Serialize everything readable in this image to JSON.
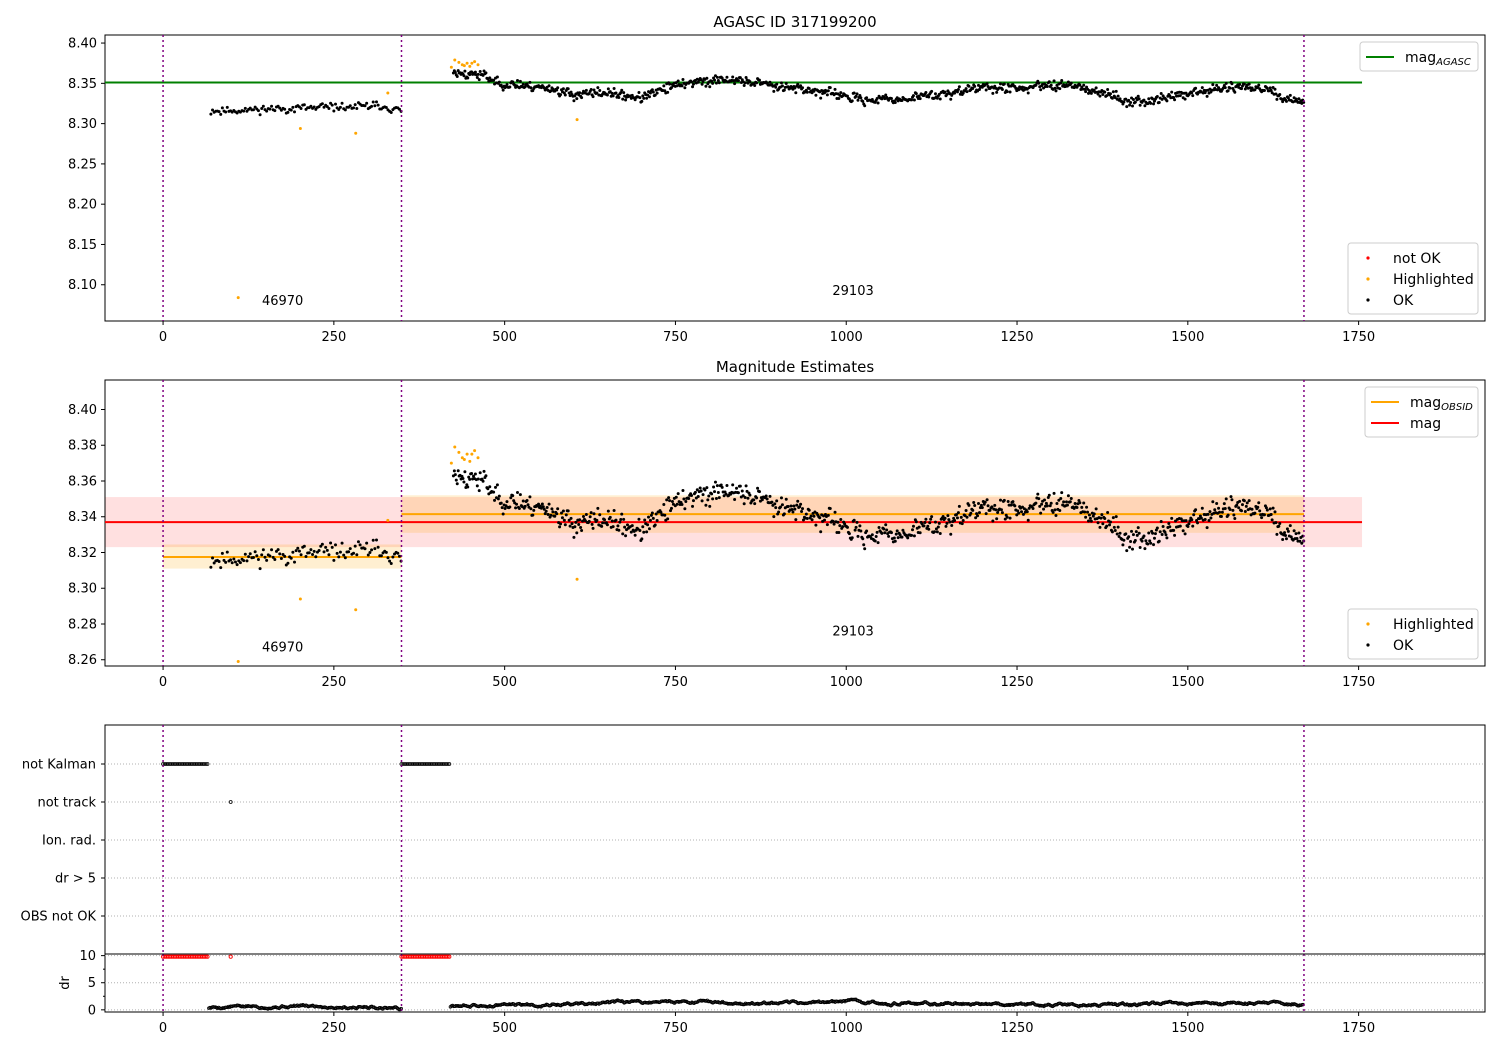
{
  "chart_data": [
    {
      "type": "scatter",
      "title": "AGASC ID 317199200",
      "xlim": [
        -85,
        1935
      ],
      "ylim": [
        8.055,
        8.41
      ],
      "xticks": [
        0,
        250,
        500,
        750,
        1000,
        1250,
        1500,
        1750
      ],
      "yticks": [
        8.1,
        8.15,
        8.2,
        8.25,
        8.3,
        8.35,
        8.4
      ],
      "ytick_labels": [
        "8.10",
        "8.15",
        "8.20",
        "8.25",
        "8.30",
        "8.35",
        "8.40"
      ],
      "vlines": [
        0,
        349,
        1670
      ],
      "obsid_labels": [
        {
          "text": "46970",
          "x": 175,
          "y": 8.075
        },
        {
          "text": "29103",
          "x": 1010,
          "y": 8.087
        }
      ],
      "hlines": [
        {
          "name": "mag",
          "sub": "AGASC",
          "y": 8.351,
          "x0": -85,
          "x1": 1755,
          "color": "#008000"
        }
      ],
      "bands": [],
      "series": [
        {
          "name": "not OK",
          "color": "#ff0000",
          "points": []
        },
        {
          "name": "Highlighted",
          "color": "#ffa500",
          "points": [
            [
              110,
              8.084
            ],
            [
              201,
              8.294
            ],
            [
              282,
              8.288
            ],
            [
              606,
              8.305
            ],
            [
              329,
              8.338
            ],
            [
              422,
              8.37
            ],
            [
              427,
              8.379
            ],
            [
              433,
              8.376
            ],
            [
              438,
              8.373
            ],
            [
              441,
              8.372
            ],
            [
              445,
              8.375
            ],
            [
              449,
              8.371
            ],
            [
              452,
              8.375
            ],
            [
              456,
              8.377
            ],
            [
              461,
              8.373
            ]
          ]
        },
        {
          "name": "OK",
          "color": "#000000",
          "segments": [
            {
              "start": 70,
              "end": 350,
              "step": 2.4,
              "base": [
                [
                  70,
                  8.316
                ],
                [
                  150,
                  8.318
                ],
                [
                  250,
                  8.32
                ],
                [
                  320,
                  8.322
                ],
                [
                  350,
                  8.316
                ]
              ],
              "noise": 0.0045,
              "seed": 11
            },
            {
              "start": 425,
              "end": 1670,
              "step": 1.4,
              "base": [
                [
                  425,
                  8.364
                ],
                [
                  470,
                  8.36
                ],
                [
                  490,
                  8.35
                ],
                [
                  560,
                  8.345
                ],
                [
                  600,
                  8.336
                ],
                [
                  650,
                  8.338
                ],
                [
                  700,
                  8.332
                ],
                [
                  760,
                  8.35
                ],
                [
                  830,
                  8.355
                ],
                [
                  900,
                  8.347
                ],
                [
                  960,
                  8.34
                ],
                [
                  1020,
                  8.33
                ],
                [
                  1080,
                  8.33
                ],
                [
                  1140,
                  8.337
                ],
                [
                  1200,
                  8.345
                ],
                [
                  1260,
                  8.344
                ],
                [
                  1320,
                  8.35
                ],
                [
                  1370,
                  8.34
                ],
                [
                  1420,
                  8.326
                ],
                [
                  1470,
                  8.333
                ],
                [
                  1520,
                  8.34
                ],
                [
                  1580,
                  8.347
                ],
                [
                  1620,
                  8.34
                ],
                [
                  1640,
                  8.33
                ],
                [
                  1670,
                  8.326
                ]
              ],
              "noise": 0.0055,
              "seed": 23
            }
          ]
        }
      ],
      "legends": [
        {
          "position": "upper right",
          "entries": [
            {
              "label": "mag",
              "sub": "AGASC",
              "kind": "line",
              "color": "#008000"
            }
          ]
        },
        {
          "position": "lower right",
          "entries": [
            {
              "label": "not OK",
              "kind": "dot",
              "color": "#ff0000"
            },
            {
              "label": "Highlighted",
              "kind": "dot",
              "color": "#ffa500"
            },
            {
              "label": "OK",
              "kind": "dot",
              "color": "#000000"
            }
          ]
        }
      ]
    },
    {
      "type": "scatter",
      "title": "Magnitude Estimates",
      "xlim": [
        -85,
        1935
      ],
      "ylim": [
        8.2565,
        8.4165
      ],
      "xticks": [
        0,
        250,
        500,
        750,
        1000,
        1250,
        1500,
        1750
      ],
      "yticks": [
        8.26,
        8.28,
        8.3,
        8.32,
        8.34,
        8.36,
        8.38,
        8.4
      ],
      "ytick_labels": [
        "8.26",
        "8.28",
        "8.30",
        "8.32",
        "8.34",
        "8.36",
        "8.38",
        "8.40"
      ],
      "vlines": [
        0,
        349,
        1670
      ],
      "obsid_labels": [
        {
          "text": "46970",
          "x": 175,
          "y": 8.2645
        },
        {
          "text": "29103",
          "x": 1010,
          "y": 8.2735
        }
      ],
      "hlines": [
        {
          "name": "mag",
          "sub": "OBSID",
          "y": 8.3175,
          "x0": 0,
          "x1": 349,
          "color": "#ffa500"
        },
        {
          "name": "mag",
          "sub": "OBSID",
          "y": 8.3415,
          "x0": 349,
          "x1": 1670,
          "color": "#ffa500"
        },
        {
          "name": "mag",
          "sub": "",
          "y": 8.337,
          "x0": -85,
          "x1": 1755,
          "color": "#ff0000"
        }
      ],
      "bands": [
        {
          "y0": 8.323,
          "y1": 8.351,
          "x0": -85,
          "x1": 1755,
          "color": "#ff0000",
          "opacity": 0.12
        },
        {
          "y0": 8.311,
          "y1": 8.3245,
          "x0": 0,
          "x1": 349,
          "color": "#ffa500",
          "opacity": 0.18
        },
        {
          "y0": 8.331,
          "y1": 8.352,
          "x0": 349,
          "x1": 1670,
          "color": "#ffa500",
          "opacity": 0.18
        }
      ],
      "series": [
        {
          "name": "Highlighted",
          "color": "#ffa500",
          "points": [
            [
              110,
              8.259
            ],
            [
              201,
              8.294
            ],
            [
              282,
              8.288
            ],
            [
              606,
              8.305
            ],
            [
              329,
              8.338
            ],
            [
              422,
              8.37
            ],
            [
              427,
              8.379
            ],
            [
              433,
              8.376
            ],
            [
              438,
              8.373
            ],
            [
              441,
              8.372
            ],
            [
              445,
              8.375
            ],
            [
              449,
              8.371
            ],
            [
              452,
              8.375
            ],
            [
              456,
              8.377
            ],
            [
              461,
              8.373
            ]
          ]
        },
        {
          "name": "OK",
          "color": "#000000",
          "segments": [
            {
              "start": 70,
              "end": 350,
              "step": 2.4,
              "base": [
                [
                  70,
                  8.316
                ],
                [
                  150,
                  8.318
                ],
                [
                  250,
                  8.32
                ],
                [
                  320,
                  8.322
                ],
                [
                  350,
                  8.316
                ]
              ],
              "noise": 0.0045,
              "seed": 11
            },
            {
              "start": 425,
              "end": 1670,
              "step": 1.4,
              "base": [
                [
                  425,
                  8.364
                ],
                [
                  470,
                  8.36
                ],
                [
                  490,
                  8.35
                ],
                [
                  560,
                  8.345
                ],
                [
                  600,
                  8.336
                ],
                [
                  650,
                  8.338
                ],
                [
                  700,
                  8.332
                ],
                [
                  760,
                  8.35
                ],
                [
                  830,
                  8.355
                ],
                [
                  900,
                  8.347
                ],
                [
                  960,
                  8.34
                ],
                [
                  1020,
                  8.33
                ],
                [
                  1080,
                  8.33
                ],
                [
                  1140,
                  8.337
                ],
                [
                  1200,
                  8.345
                ],
                [
                  1260,
                  8.344
                ],
                [
                  1320,
                  8.35
                ],
                [
                  1370,
                  8.34
                ],
                [
                  1420,
                  8.326
                ],
                [
                  1470,
                  8.333
                ],
                [
                  1520,
                  8.34
                ],
                [
                  1580,
                  8.347
                ],
                [
                  1620,
                  8.34
                ],
                [
                  1640,
                  8.33
                ],
                [
                  1670,
                  8.326
                ]
              ],
              "noise": 0.0055,
              "seed": 23
            }
          ]
        }
      ],
      "legends": [
        {
          "position": "upper right",
          "entries": [
            {
              "label": "mag",
              "sub": "OBSID",
              "kind": "line",
              "color": "#ffa500"
            },
            {
              "label": "mag",
              "sub": "",
              "kind": "line",
              "color": "#ff0000"
            }
          ]
        },
        {
          "position": "lower right",
          "entries": [
            {
              "label": "Highlighted",
              "kind": "dot",
              "color": "#ffa500"
            },
            {
              "label": "OK",
              "kind": "dot",
              "color": "#000000"
            }
          ]
        }
      ]
    },
    {
      "type": "scatter",
      "title": "",
      "xlim": [
        -85,
        1935
      ],
      "categories": [
        "not Kalman",
        "not track",
        "Ion. rad.",
        "dr > 5",
        "OBS not OK"
      ],
      "vlines": [
        0,
        349,
        1670
      ],
      "flags": [
        {
          "category": "not Kalman",
          "ranges": [
            [
              0,
              67
            ],
            [
              349,
              420
            ]
          ]
        },
        {
          "category": "not track",
          "points": [
            99
          ]
        },
        {
          "category": "Ion. rad.",
          "ranges": []
        },
        {
          "category": "dr > 5",
          "ranges": []
        },
        {
          "category": "OBS not OK",
          "ranges": []
        }
      ]
    },
    {
      "type": "scatter",
      "title": "",
      "ylabel": "dr",
      "xlim": [
        -85,
        1935
      ],
      "ylim": [
        -0.4,
        10.3
      ],
      "xticks": [
        0,
        250,
        500,
        750,
        1000,
        1250,
        1500,
        1750
      ],
      "yticks": [
        0,
        5,
        10
      ],
      "vlines": [
        0,
        349,
        1670
      ],
      "series": [
        {
          "name": "dr clipped",
          "color": "#ff0000",
          "ranges": [
            [
              0,
              67
            ],
            [
              349,
              420
            ]
          ],
          "points": [
            99
          ],
          "y": 9.8
        },
        {
          "name": "dr",
          "color": "#000000",
          "base": [
            [
              67,
              0.4
            ],
            [
              100,
              0.6
            ],
            [
              200,
              0.7
            ],
            [
              330,
              0.5
            ],
            [
              349,
              0.2
            ],
            [
              420,
              0.7
            ],
            [
              520,
              0.9
            ],
            [
              650,
              1.2
            ],
            [
              760,
              1.6
            ],
            [
              900,
              1.0
            ],
            [
              1000,
              1.6
            ],
            [
              1100,
              1.1
            ],
            [
              1200,
              1.2
            ],
            [
              1300,
              1.0
            ],
            [
              1450,
              1.0
            ],
            [
              1550,
              1.1
            ],
            [
              1640,
              1.3
            ],
            [
              1670,
              0.8
            ]
          ],
          "noise": 0.35,
          "seed": 5
        }
      ]
    }
  ]
}
